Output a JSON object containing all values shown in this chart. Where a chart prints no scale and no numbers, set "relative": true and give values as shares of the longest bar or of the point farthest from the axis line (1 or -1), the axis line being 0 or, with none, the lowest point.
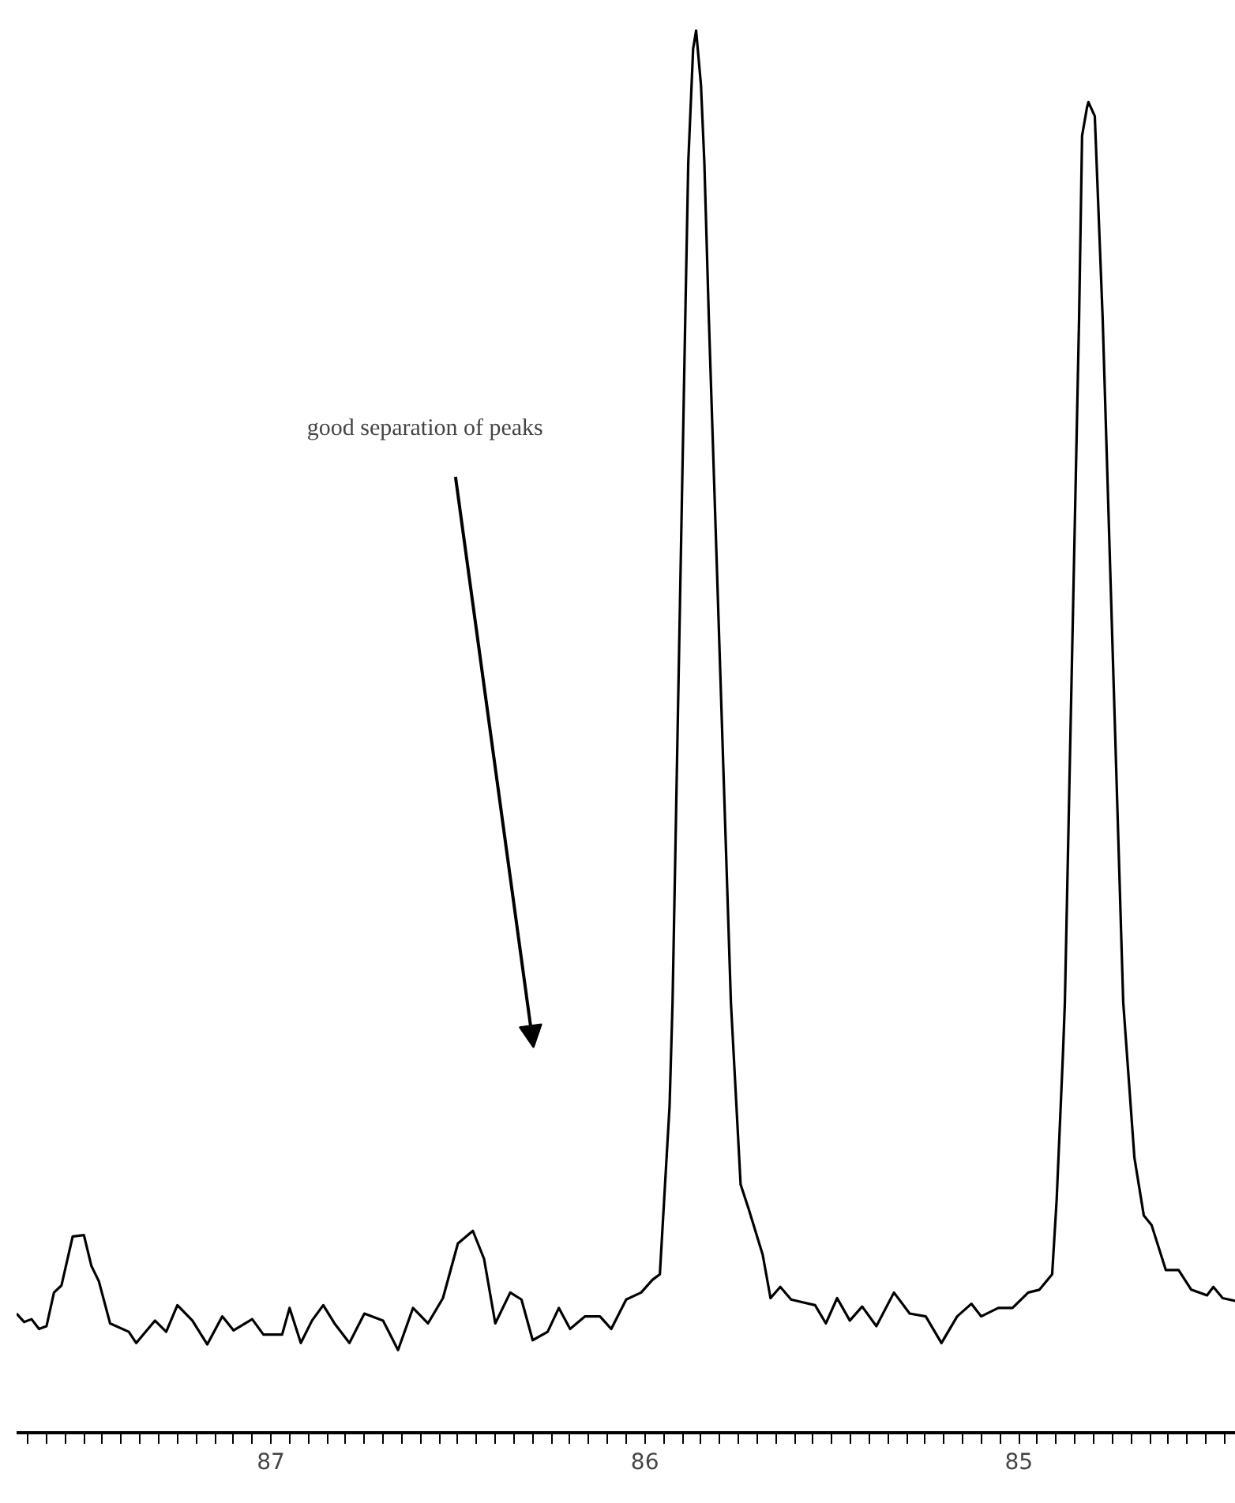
{
  "chart_data": {
    "type": "line",
    "relative": true,
    "grid": false,
    "marker": "none",
    "line_style": "solid",
    "annotations": [
      "good separation of peaks"
    ],
    "xlim": [
      87.68,
      84.42
    ],
    "xticks": [
      {
        "value": 87.65,
        "label": null
      },
      {
        "value": 87.6,
        "label": null
      },
      {
        "value": 87.55,
        "label": null
      },
      {
        "value": 87.5,
        "label": null
      },
      {
        "value": 87.45,
        "label": null
      },
      {
        "value": 87.4,
        "label": null
      },
      {
        "value": 87.35,
        "label": null
      },
      {
        "value": 87.3,
        "label": null
      },
      {
        "value": 87.25,
        "label": null
      },
      {
        "value": 87.2,
        "label": null
      },
      {
        "value": 87.15,
        "label": null
      },
      {
        "value": 87.1,
        "label": null
      },
      {
        "value": 87.05,
        "label": null
      },
      87,
      {
        "value": 86.95,
        "label": null
      },
      {
        "value": 86.9,
        "label": null
      },
      {
        "value": 86.85,
        "label": null
      },
      {
        "value": 86.8,
        "label": null
      },
      {
        "value": 86.75,
        "label": null
      },
      {
        "value": 86.7,
        "label": null
      },
      {
        "value": 86.65,
        "label": null
      },
      {
        "value": 86.6,
        "label": null
      },
      {
        "value": 86.55,
        "label": null
      },
      {
        "value": 86.5,
        "label": null
      },
      {
        "value": 86.45,
        "label": null
      },
      {
        "value": 86.4,
        "label": null
      },
      {
        "value": 86.35,
        "label": null
      },
      {
        "value": 86.3,
        "label": null
      },
      {
        "value": 86.25,
        "label": null
      },
      {
        "value": 86.2,
        "label": null
      },
      {
        "value": 86.15,
        "label": null
      },
      {
        "value": 86.1,
        "label": null
      },
      {
        "value": 86.05,
        "label": null
      },
      86,
      {
        "value": 85.95,
        "label": null
      },
      {
        "value": 85.9,
        "label": null
      },
      {
        "value": 85.85,
        "label": null
      },
      {
        "value": 85.8,
        "label": null
      },
      {
        "value": 85.75,
        "label": null
      },
      {
        "value": 85.7,
        "label": null
      },
      {
        "value": 85.65,
        "label": null
      },
      {
        "value": 85.6,
        "label": null
      },
      {
        "value": 85.55,
        "label": null
      },
      {
        "value": 85.5,
        "label": null
      },
      {
        "value": 85.45,
        "label": null
      },
      {
        "value": 85.4,
        "label": null
      },
      {
        "value": 85.35,
        "label": null
      },
      {
        "value": 85.3,
        "label": null
      },
      {
        "value": 85.25,
        "label": null
      },
      {
        "value": 85.2,
        "label": null
      },
      {
        "value": 85.15,
        "label": null
      },
      {
        "value": 85.1,
        "label": null
      },
      {
        "value": 85.05,
        "label": null
      },
      85,
      {
        "value": 84.95,
        "label": null
      },
      {
        "value": 84.9,
        "label": null
      },
      {
        "value": 84.85,
        "label": null
      },
      {
        "value": 84.8,
        "label": null
      },
      {
        "value": 84.75,
        "label": null
      },
      {
        "value": 84.7,
        "label": null
      },
      {
        "value": 84.65,
        "label": null
      },
      {
        "value": 84.6,
        "label": null
      },
      {
        "value": 84.55,
        "label": null
      },
      {
        "value": 84.5,
        "label": null
      },
      {
        "value": 84.45,
        "label": null
      }
    ],
    "series": [
      {
        "color": "#000000",
        "x": [
          87.68,
          87.66,
          87.64,
          87.62,
          87.6,
          87.58,
          87.56,
          87.53,
          87.5,
          87.48,
          87.46,
          87.43,
          87.38,
          87.36,
          87.31,
          87.28,
          87.25,
          87.21,
          87.17,
          87.13,
          87.1,
          87.05,
          87.02,
          86.97,
          86.95,
          86.92,
          86.89,
          86.86,
          86.83,
          86.79,
          86.75,
          86.7,
          86.66,
          86.62,
          86.58,
          86.54,
          86.5,
          86.46,
          86.43,
          86.4,
          86.36,
          86.33,
          86.3,
          86.26,
          86.23,
          86.2,
          86.16,
          86.12,
          86.09,
          86.05,
          86.01,
          85.98,
          85.96,
          85.934,
          85.926,
          85.892,
          85.884,
          85.871,
          85.863,
          85.85,
          85.841,
          85.829,
          85.77,
          85.744,
          85.723,
          85.685,
          85.664,
          85.638,
          85.609,
          85.545,
          85.516,
          85.486,
          85.452,
          85.419,
          85.381,
          85.334,
          85.292,
          85.249,
          85.207,
          85.165,
          85.127,
          85.101,
          85.055,
          85.017,
          84.975,
          84.945,
          84.911,
          84.899,
          84.882,
          84.877,
          84.839,
          84.831,
          84.818,
          84.814,
          84.797,
          84.784,
          84.776,
          84.721,
          84.691,
          84.666,
          84.645,
          84.607,
          84.573,
          84.539,
          84.497,
          84.48,
          84.455,
          84.42
        ],
        "values": [
          0.085,
          0.079,
          0.081,
          0.074,
          0.076,
          0.1,
          0.105,
          0.14,
          0.141,
          0.119,
          0.108,
          0.078,
          0.072,
          0.064,
          0.08,
          0.072,
          0.091,
          0.08,
          0.063,
          0.083,
          0.073,
          0.081,
          0.07,
          0.07,
          0.089,
          0.064,
          0.08,
          0.091,
          0.078,
          0.064,
          0.085,
          0.08,
          0.059,
          0.089,
          0.078,
          0.096,
          0.135,
          0.144,
          0.124,
          0.078,
          0.1,
          0.095,
          0.066,
          0.072,
          0.089,
          0.074,
          0.083,
          0.083,
          0.074,
          0.095,
          0.1,
          0.109,
          0.113,
          0.233,
          0.307,
          0.795,
          0.906,
          0.987,
          1,
          0.961,
          0.906,
          0.795,
          0.307,
          0.177,
          0.16,
          0.127,
          0.096,
          0.104,
          0.095,
          0.091,
          0.078,
          0.096,
          0.08,
          0.09,
          0.076,
          0.1,
          0.085,
          0.083,
          0.064,
          0.083,
          0.092,
          0.083,
          0.089,
          0.089,
          0.1,
          0.102,
          0.113,
          0.166,
          0.271,
          0.307,
          0.795,
          0.925,
          0.945,
          0.949,
          0.939,
          0.85,
          0.795,
          0.307,
          0.196,
          0.155,
          0.148,
          0.116,
          0.116,
          0.102,
          0.098,
          0.104,
          0.096,
          0.094
        ]
      }
    ]
  }
}
